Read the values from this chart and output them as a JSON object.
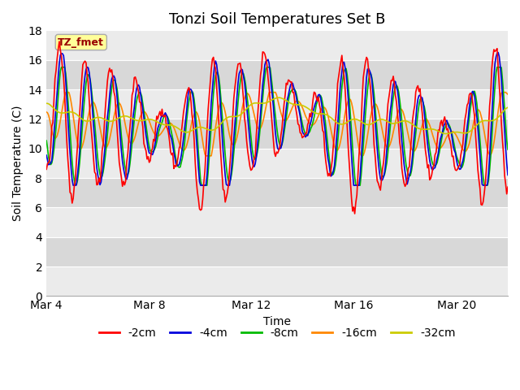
{
  "title": "Tonzi Soil Temperatures Set B",
  "xlabel": "Time",
  "ylabel": "Soil Temperature (C)",
  "ylim": [
    0,
    18
  ],
  "yticks": [
    0,
    2,
    4,
    6,
    8,
    10,
    12,
    14,
    16,
    18
  ],
  "xtick_labels": [
    "Mar 4",
    "Mar 8",
    "Mar 12",
    "Mar 16",
    "Mar 20"
  ],
  "xtick_positions": [
    4,
    8,
    12,
    16,
    20
  ],
  "legend_label": "TZ_fmet",
  "series_labels": [
    "-2cm",
    "-4cm",
    "-8cm",
    "-16cm",
    "-32cm"
  ],
  "series_colors": [
    "#ff0000",
    "#0000dd",
    "#00bb00",
    "#ff8800",
    "#cccc00"
  ],
  "background_color": "#ffffff",
  "plot_bg_light": "#ebebeb",
  "plot_bg_dark": "#d8d8d8",
  "grid_color": "#ffffff",
  "title_fontsize": 13,
  "axis_label_fontsize": 10,
  "tick_fontsize": 10,
  "legend_box_color": "#ffff99",
  "legend_box_edge": "#aaaaaa",
  "legend_text_color": "#990000",
  "band_edges": [
    0,
    2,
    4,
    6,
    8,
    10,
    12,
    14,
    16,
    18
  ]
}
